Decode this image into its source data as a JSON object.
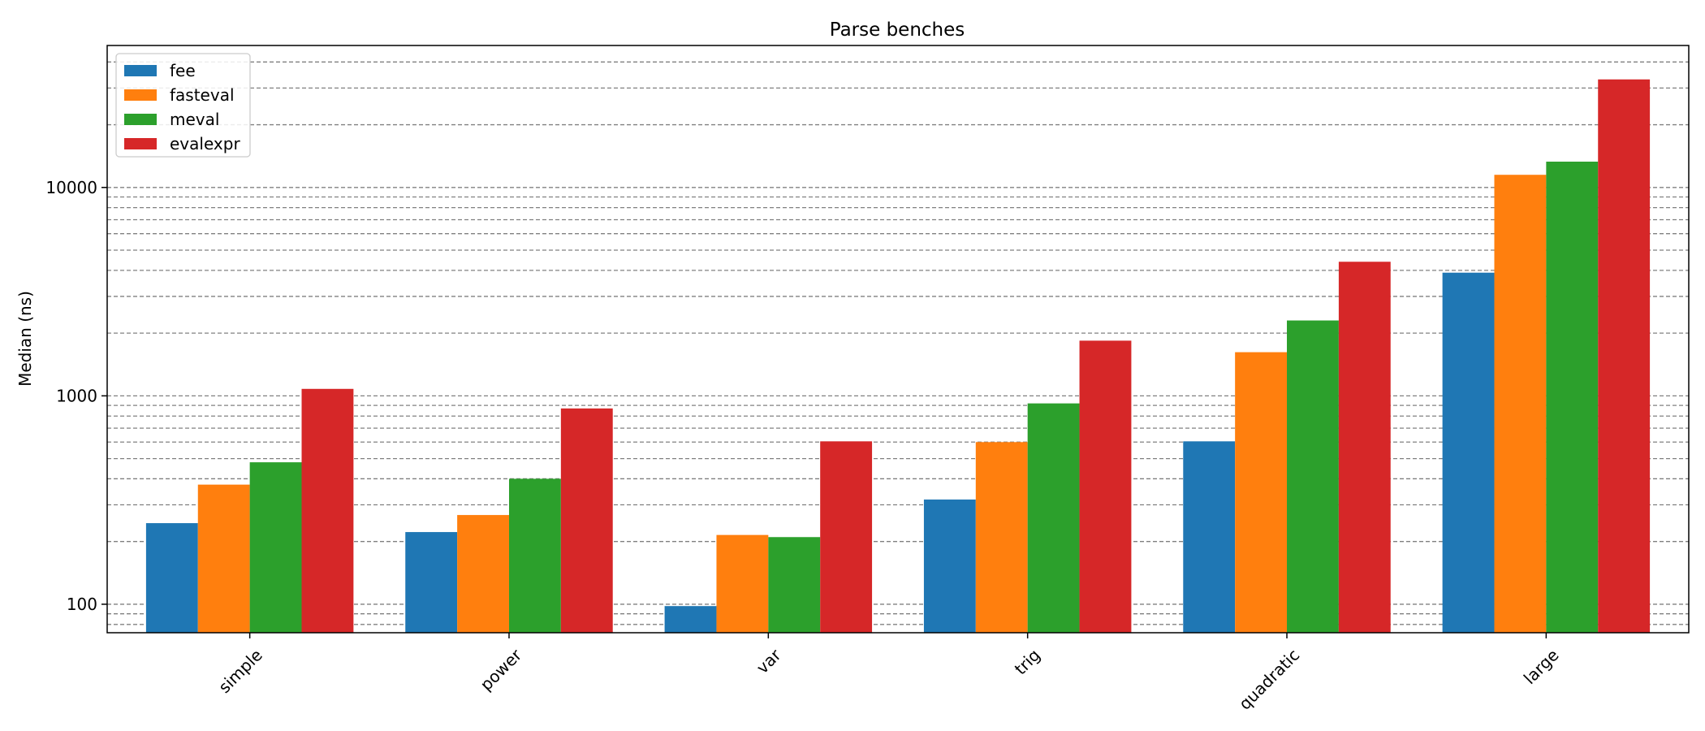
{
  "chart_data": {
    "type": "bar",
    "title": "Parse benches",
    "xlabel": "",
    "ylabel": "Median (ns)",
    "yscale": "log",
    "ylim": [
      73,
      48000
    ],
    "grid": "y-major-and-minor-dashed",
    "legend_position": "top-left",
    "categories": [
      "simple",
      "power",
      "var",
      "trig",
      "quadratic",
      "large"
    ],
    "yticks": [
      {
        "value": 100,
        "label": "100"
      },
      {
        "value": 1000,
        "label": "1000"
      },
      {
        "value": 10000,
        "label": "10000"
      }
    ],
    "series": [
      {
        "name": "fee",
        "color": "#1f77b4",
        "values": [
          245,
          222,
          98,
          318,
          605,
          3900
        ]
      },
      {
        "name": "fasteval",
        "color": "#ff7f0e",
        "values": [
          375,
          268,
          215,
          600,
          1620,
          11500
        ]
      },
      {
        "name": "meval",
        "color": "#2ca02c",
        "values": [
          480,
          400,
          210,
          920,
          2300,
          13300
        ]
      },
      {
        "name": "evalexpr",
        "color": "#d62728",
        "values": [
          1080,
          870,
          605,
          1840,
          4400,
          33000
        ]
      }
    ]
  }
}
